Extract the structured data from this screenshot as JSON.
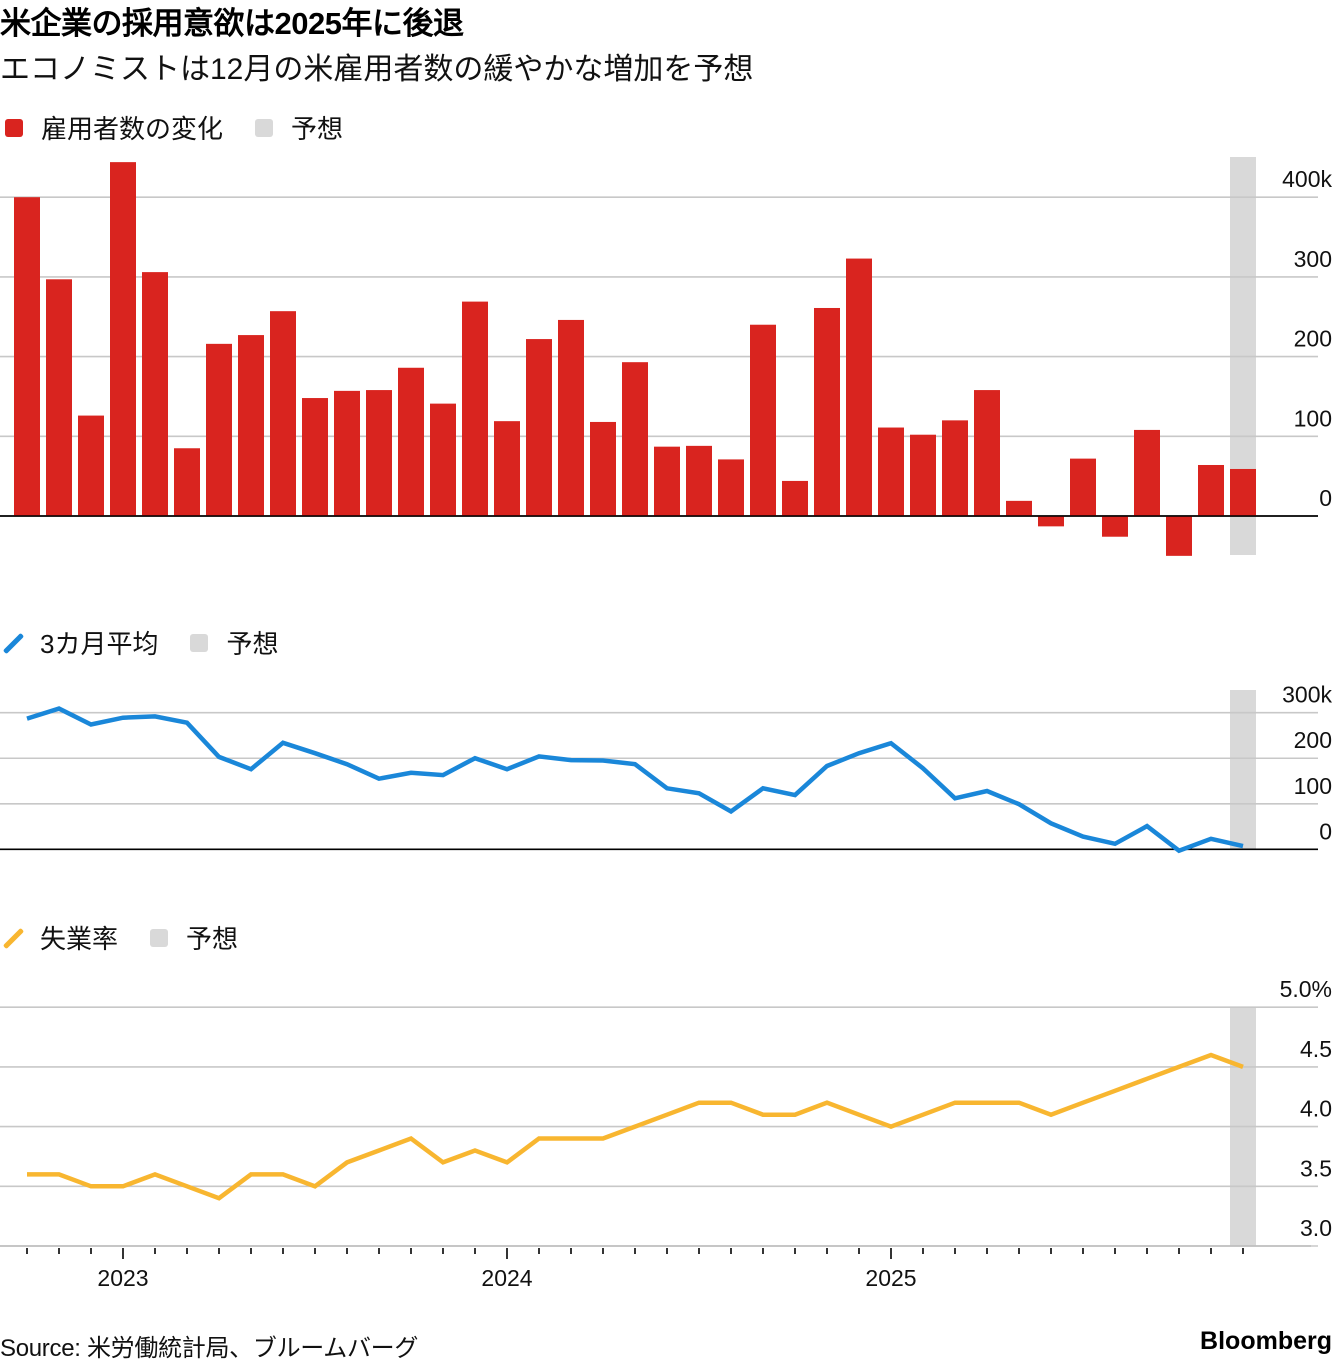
{
  "header": {
    "title": "米企業の採用意欲は2025年に後退",
    "subtitle": "エコノミストは12月の米雇用者数の緩やかな増加を予想"
  },
  "legends": {
    "payrolls": {
      "series_label": "雇用者数の変化",
      "forecast_label": "予想"
    },
    "avg3m": {
      "series_label": "3カ月平均",
      "forecast_label": "予想"
    },
    "unemployment": {
      "series_label": "失業率",
      "forecast_label": "予想"
    }
  },
  "colors": {
    "bar": "#d9241f",
    "avg_line": "#1a87d9",
    "unemployment_line": "#f8b630",
    "forecast_band": "#d9d9d9",
    "grid": "#c8c8c8",
    "baseline": "#000000"
  },
  "x_axis": {
    "months": [
      "2022-10",
      "2022-11",
      "2022-12",
      "2023-01",
      "2023-02",
      "2023-03",
      "2023-04",
      "2023-05",
      "2023-06",
      "2023-07",
      "2023-08",
      "2023-09",
      "2023-10",
      "2023-11",
      "2023-12",
      "2024-01",
      "2024-02",
      "2024-03",
      "2024-04",
      "2024-05",
      "2024-06",
      "2024-07",
      "2024-08",
      "2024-09",
      "2024-10",
      "2024-11",
      "2024-12",
      "2025-01",
      "2025-02",
      "2025-03",
      "2025-04",
      "2025-05",
      "2025-06",
      "2025-07",
      "2025-08",
      "2025-09",
      "2025-10",
      "2025-11",
      "2025-12"
    ],
    "year_labels": [
      {
        "label": "2023",
        "index": 3
      },
      {
        "label": "2024",
        "index": 15
      },
      {
        "label": "2025",
        "index": 27
      }
    ],
    "forecast_index": 38
  },
  "chart_data": [
    {
      "type": "bar",
      "title": "雇用者数の変化",
      "ylabel": "",
      "ylim": [
        -50,
        450
      ],
      "yticks": [
        0,
        100,
        200,
        300,
        400
      ],
      "ytick_labels": [
        "0",
        "100",
        "200",
        "300",
        "400k"
      ],
      "grid": true,
      "legend": [
        "雇用者数の変化",
        "予想"
      ],
      "x": [
        "2022-10",
        "2022-11",
        "2022-12",
        "2023-01",
        "2023-02",
        "2023-03",
        "2023-04",
        "2023-05",
        "2023-06",
        "2023-07",
        "2023-08",
        "2023-09",
        "2023-10",
        "2023-11",
        "2023-12",
        "2024-01",
        "2024-02",
        "2024-03",
        "2024-04",
        "2024-05",
        "2024-06",
        "2024-07",
        "2024-08",
        "2024-09",
        "2024-10",
        "2024-11",
        "2024-12",
        "2025-01",
        "2025-02",
        "2025-03",
        "2025-04",
        "2025-05",
        "2025-06",
        "2025-07",
        "2025-08",
        "2025-09",
        "2025-10",
        "2025-11",
        "2025-12 (予想)"
      ],
      "values": [
        400,
        297,
        126,
        444,
        306,
        85,
        216,
        227,
        257,
        148,
        157,
        158,
        186,
        141,
        269,
        119,
        222,
        246,
        118,
        193,
        87,
        88,
        71,
        240,
        44,
        261,
        323,
        111,
        102,
        120,
        158,
        19,
        -13,
        72,
        -26,
        108,
        -50,
        64,
        59
      ]
    },
    {
      "type": "line",
      "title": "3カ月平均",
      "ylabel": "",
      "ylim": [
        0,
        300
      ],
      "yticks": [
        0,
        100,
        200,
        300
      ],
      "ytick_labels": [
        "0",
        "100",
        "200",
        "300k"
      ],
      "grid": true,
      "legend": [
        "3カ月平均",
        "予想"
      ],
      "x": [
        "2022-10",
        "2022-11",
        "2022-12",
        "2023-01",
        "2023-02",
        "2023-03",
        "2023-04",
        "2023-05",
        "2023-06",
        "2023-07",
        "2023-08",
        "2023-09",
        "2023-10",
        "2023-11",
        "2023-12",
        "2024-01",
        "2024-02",
        "2024-03",
        "2024-04",
        "2024-05",
        "2024-06",
        "2024-07",
        "2024-08",
        "2024-09",
        "2024-10",
        "2024-11",
        "2024-12",
        "2025-01",
        "2025-02",
        "2025-03",
        "2025-04",
        "2025-05",
        "2025-06",
        "2025-07",
        "2025-08",
        "2025-09",
        "2025-10",
        "2025-11",
        "2025-12 (予想)"
      ],
      "values": [
        287,
        309,
        274,
        289,
        292,
        278,
        203,
        176,
        234,
        211,
        187,
        155,
        168,
        163,
        200,
        176,
        204,
        196,
        195,
        187,
        134,
        123,
        83,
        134,
        119,
        183,
        211,
        233,
        178,
        112,
        128,
        99,
        57,
        28,
        12,
        51,
        -3,
        23,
        7
      ]
    },
    {
      "type": "line",
      "title": "失業率",
      "ylabel": "",
      "ylim": [
        3.0,
        5.0
      ],
      "yticks": [
        3.0,
        3.5,
        4.0,
        4.5,
        5.0
      ],
      "ytick_labels": [
        "3.0",
        "3.5",
        "4.0",
        "4.5",
        "5.0%"
      ],
      "grid": true,
      "legend": [
        "失業率",
        "予想"
      ],
      "x": [
        "2022-10",
        "2022-11",
        "2022-12",
        "2023-01",
        "2023-02",
        "2023-03",
        "2023-04",
        "2023-05",
        "2023-06",
        "2023-07",
        "2023-08",
        "2023-09",
        "2023-10",
        "2023-11",
        "2023-12",
        "2024-01",
        "2024-02",
        "2024-03",
        "2024-04",
        "2024-05",
        "2024-06",
        "2024-07",
        "2024-08",
        "2024-09",
        "2024-10",
        "2024-11",
        "2024-12",
        "2025-01",
        "2025-02",
        "2025-03",
        "2025-04",
        "2025-05",
        "2025-06",
        "2025-07",
        "2025-08",
        "2025-09",
        "2025-10",
        "2025-11",
        "2025-12 (予想)"
      ],
      "values": [
        3.6,
        3.6,
        3.5,
        3.5,
        3.6,
        3.5,
        3.4,
        3.6,
        3.6,
        3.5,
        3.7,
        3.8,
        3.9,
        3.7,
        3.8,
        3.7,
        3.9,
        3.9,
        3.9,
        4.0,
        4.1,
        4.2,
        4.2,
        4.1,
        4.1,
        4.2,
        4.1,
        4.0,
        4.1,
        4.2,
        4.2,
        4.2,
        4.1,
        4.2,
        4.3,
        4.4,
        4.5,
        4.6,
        4.5
      ]
    }
  ],
  "footer": {
    "source": "Source: 米労働統計局、ブルームバーグ",
    "brand": "Bloomberg"
  }
}
